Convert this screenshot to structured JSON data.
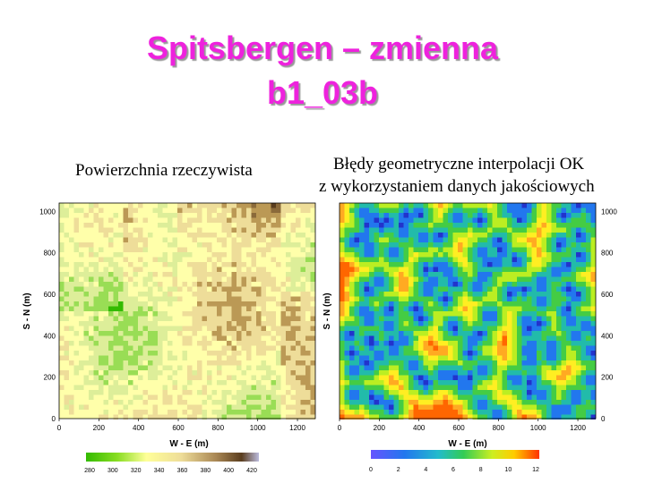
{
  "slide": {
    "title_line1": "Spitsbergen – zmienna",
    "title_line2": "b1_03b"
  },
  "left_panel": {
    "caption": "Powierzchnia rzeczywista",
    "xlabel": "W - E (m)",
    "ylabel": "S - N (m)",
    "x_ticks": [
      "0",
      "200",
      "400",
      "600",
      "800",
      "1000",
      "1200"
    ],
    "y_ticks": [
      "0",
      "200",
      "400",
      "600",
      "800",
      "1000"
    ],
    "colorbar_ticks": [
      "280",
      "300",
      "320",
      "340",
      "360",
      "380",
      "400",
      "420"
    ],
    "colors": [
      "#33bb00",
      "#99dd55",
      "#ddee99",
      "#ffffaa",
      "#eedd99",
      "#bb9955",
      "#8b6a3a",
      "#5a3d1e"
    ]
  },
  "right_panel": {
    "caption_line1": "Błędy geometryczne interpolacji OK",
    "caption_line2": "z wykorzystaniem danych jakościowych",
    "xlabel": "W - E (m)",
    "ylabel": "S - N (m)",
    "x_ticks": [
      "0",
      "200",
      "400",
      "600",
      "800",
      "1000",
      "1200"
    ],
    "y_ticks": [
      "0",
      "200",
      "400",
      "600",
      "800",
      "1000"
    ],
    "colorbar_ticks": [
      "0",
      "2",
      "4",
      "6",
      "8",
      "10",
      "12"
    ],
    "colors": [
      "#2233cc",
      "#2277ee",
      "#22bbaa",
      "#44cc44",
      "#bbee22",
      "#ffee00",
      "#ffaa22",
      "#ff6600"
    ]
  }
}
